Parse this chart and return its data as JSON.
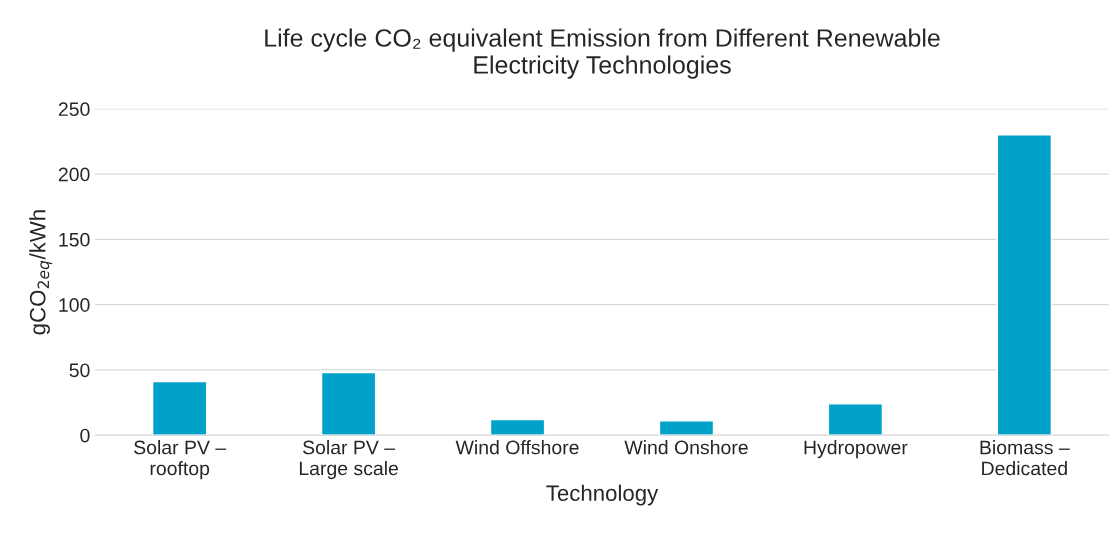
{
  "chart_data": {
    "type": "bar",
    "title": "Life cycle CO₂ equivalent Emission from Different Renewable\nElectricity Technologies",
    "xlabel": "Technology",
    "ylabel": "gCO$_{2eq}$/kWh",
    "categories": [
      "Solar PV –\nrooftop",
      "Solar PV –\nLarge scale",
      "Wind Offshore",
      "Wind Onshore",
      "Hydropower",
      "Biomass –\nDedicated"
    ],
    "values": [
      41,
      48,
      12,
      11,
      24,
      230
    ],
    "color": "#00a2c9",
    "ylim": [
      0,
      250
    ],
    "yticks": [
      0,
      50,
      100,
      150,
      200,
      250
    ],
    "grid": "y"
  }
}
